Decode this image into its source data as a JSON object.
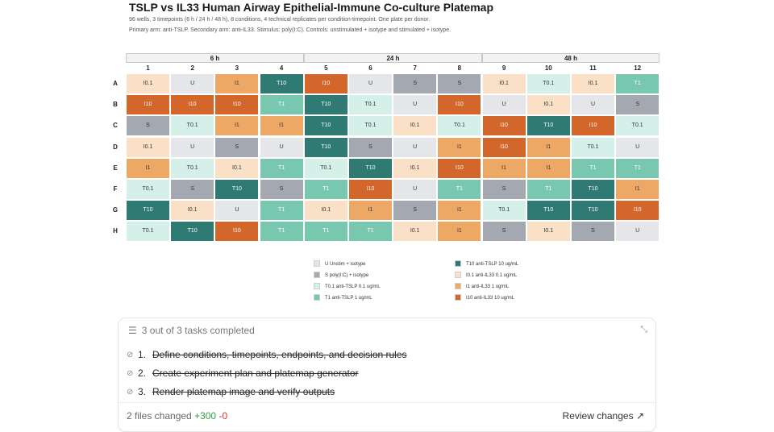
{
  "title": "TSLP vs IL33 Human Airway Epithelial-Immune Co-culture Platemap",
  "subtitle1": "96 wells, 3 timepoints (6 h / 24 h / 48 h), 8 conditions, 4 technical replicates per condition-timepoint. One plate per donor.",
  "subtitle2": "Primary arm: anti-TSLP. Secondary arm: anti-IL33. Stimulus: poly(I:C). Controls: unstimulated + isotype and stimulated + isotype.",
  "timepoints": [
    "6 h",
    "24 h",
    "48 h"
  ],
  "columns": [
    "1",
    "2",
    "3",
    "4",
    "5",
    "6",
    "7",
    "8",
    "9",
    "10",
    "11",
    "12"
  ],
  "rows": [
    "A",
    "B",
    "C",
    "D",
    "E",
    "F",
    "G",
    "H"
  ],
  "colors": {
    "U": "#e5e6ea",
    "S": "#a4a8b1",
    "T0.1": "#d4f0e8",
    "T1": "#78c8b0",
    "T10": "#2f7a72",
    "I0.1": "#fbe0c8",
    "I1": "#eda866",
    "I10": "#d2662b"
  },
  "text_colors": {
    "U": "#333333",
    "S": "#333333",
    "T0.1": "#333333",
    "T1": "#ffffff",
    "T10": "#ffffff",
    "I0.1": "#333333",
    "I1": "#333333",
    "I10": "#ffffff"
  },
  "plate": [
    [
      "I0.1",
      "U",
      "I1",
      "T10",
      "I10",
      "U",
      "S",
      "S",
      "I0.1",
      "T0.1",
      "I0.1",
      "T1"
    ],
    [
      "I10",
      "I10",
      "I10",
      "T1",
      "T10",
      "T0.1",
      "U",
      "I10",
      "U",
      "I0.1",
      "U",
      "S"
    ],
    [
      "S",
      "T0.1",
      "I1",
      "I1",
      "T10",
      "T0.1",
      "I0.1",
      "T0.1",
      "I10",
      "T10",
      "I10",
      "T0.1"
    ],
    [
      "I0.1",
      "U",
      "S",
      "U",
      "T10",
      "S",
      "U",
      "I1",
      "I10",
      "I1",
      "T0.1",
      "U"
    ],
    [
      "I1",
      "T0.1",
      "I0.1",
      "T1",
      "T0.1",
      "T10",
      "I0.1",
      "I10",
      "I1",
      "I1",
      "T1",
      "T1"
    ],
    [
      "T0.1",
      "S",
      "T10",
      "S",
      "T1",
      "I10",
      "U",
      "T1",
      "S",
      "T1",
      "T10",
      "I1"
    ],
    [
      "T10",
      "I0.1",
      "U",
      "T1",
      "I0.1",
      "I1",
      "S",
      "I1",
      "T0.1",
      "T10",
      "T10",
      "I10"
    ],
    [
      "T0.1",
      "T10",
      "I10",
      "T1",
      "T1",
      "T1",
      "I0.1",
      "I1",
      "S",
      "I0.1",
      "S",
      "U"
    ]
  ],
  "legend": [
    {
      "code": "U",
      "label": "U  Unstim + isotype"
    },
    {
      "code": "S",
      "label": "S  poly(I:C) + isotype"
    },
    {
      "code": "T0.1",
      "label": "T0.1  anti-TSLP 0.1 ug/mL"
    },
    {
      "code": "T1",
      "label": "T1  anti-TSLP 1 ug/mL"
    },
    {
      "code": "T10",
      "label": "T10  anti-TSLP 10 ug/mL"
    },
    {
      "code": "I0.1",
      "label": "I0.1  anti-IL33 0.1 ug/mL"
    },
    {
      "code": "I1",
      "label": "I1  anti-IL33 1 ug/mL"
    },
    {
      "code": "I10",
      "label": "I10  anti-IL33 10 ug/mL"
    }
  ],
  "panel": {
    "header": "3 out of 3 tasks completed",
    "tasks": [
      {
        "num": "1.",
        "text": "Define conditions, timepoints, endpoints, and decision rules"
      },
      {
        "num": "2.",
        "text": "Create experiment plan and platemap generator"
      },
      {
        "num": "3.",
        "text": "Render platemap image and verify outputs"
      }
    ],
    "files_changed": "2 files changed",
    "additions": "+300",
    "deletions": "-0",
    "review": "Review changes"
  }
}
